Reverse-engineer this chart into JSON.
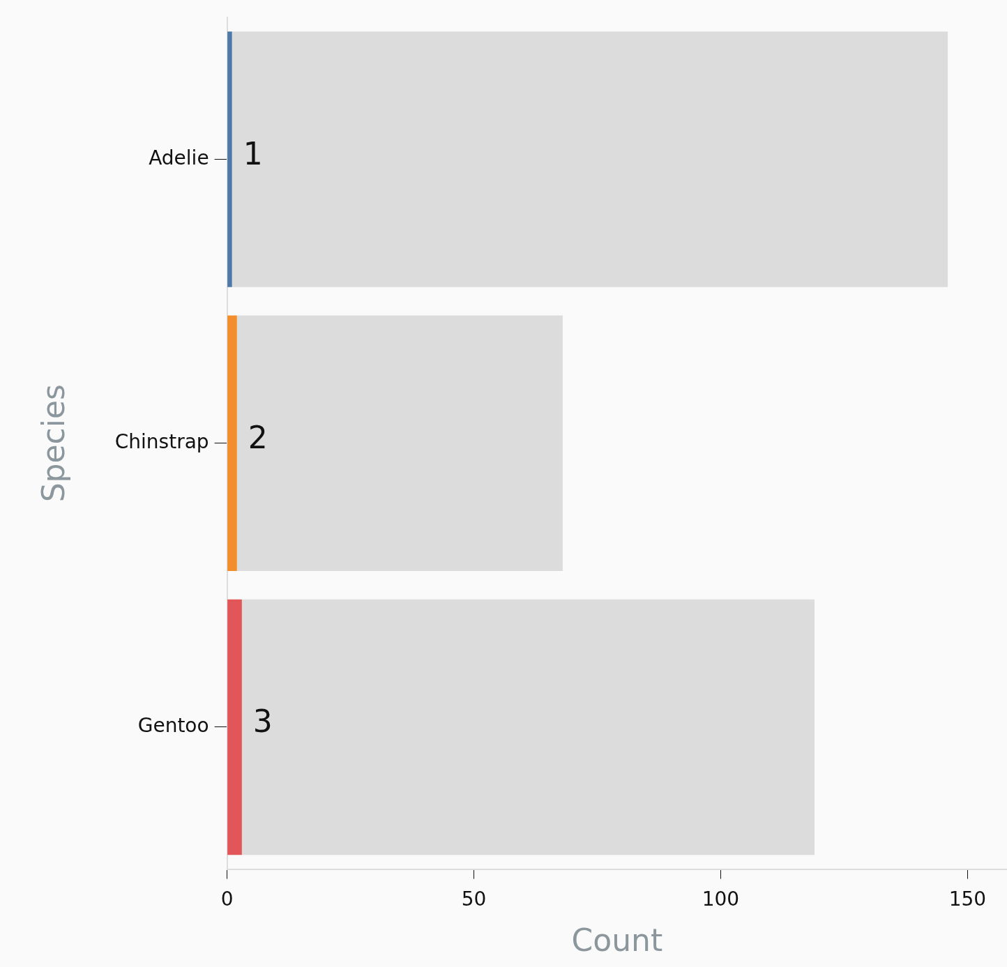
{
  "chart_data": {
    "type": "bar",
    "orientation": "horizontal",
    "stacked": true,
    "categories": [
      "Adelie",
      "Chinstrap",
      "Gentoo"
    ],
    "series": [
      {
        "colors": [
          "#4e79a7",
          "#f28e2b",
          "#e15759"
        ],
        "values": [
          1,
          2,
          3
        ],
        "value_labels": [
          "1",
          "2",
          "3"
        ]
      },
      {
        "color": "#dcdcdc",
        "values": [
          145,
          66,
          116
        ]
      }
    ],
    "xlabel": "Count",
    "ylabel": "Species",
    "xlim": [
      0,
      158
    ],
    "xticks": [
      0,
      50,
      100,
      150
    ],
    "grid": false,
    "legend": false
  }
}
